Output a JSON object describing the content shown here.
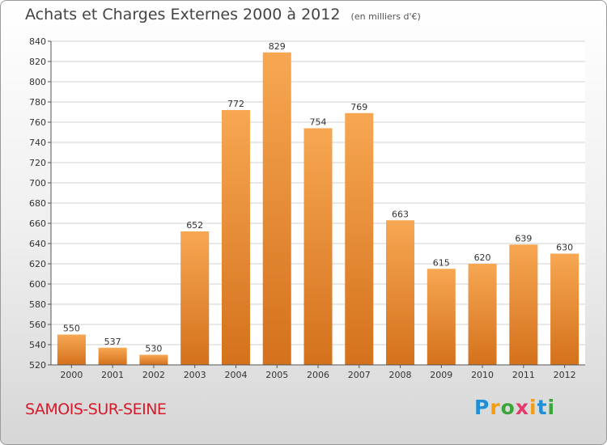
{
  "title": "Achats et Charges Externes 2000 à 2012",
  "unit": "(en milliers d'€)",
  "commune": "SAMOIS-SUR-SEINE",
  "logo": {
    "p": "P",
    "r": "r",
    "o": "o",
    "x": "x",
    "i1": "i",
    "t": "t",
    "i2": "i"
  },
  "colors": {
    "bar_light": "#f7a752",
    "bar_dark": "#d4711c",
    "commune": "#d7192c",
    "title": "#444444"
  },
  "chart_data": {
    "type": "bar",
    "categories": [
      "2000",
      "2001",
      "2002",
      "2003",
      "2004",
      "2005",
      "2006",
      "2007",
      "2008",
      "2009",
      "2010",
      "2011",
      "2012"
    ],
    "values": [
      550,
      537,
      530,
      652,
      772,
      829,
      754,
      769,
      663,
      615,
      620,
      639,
      630
    ],
    "ylim": [
      520,
      840
    ],
    "yticks": [
      520,
      540,
      560,
      580,
      600,
      620,
      640,
      660,
      680,
      700,
      720,
      740,
      760,
      780,
      800,
      820,
      840
    ],
    "grid": true
  }
}
